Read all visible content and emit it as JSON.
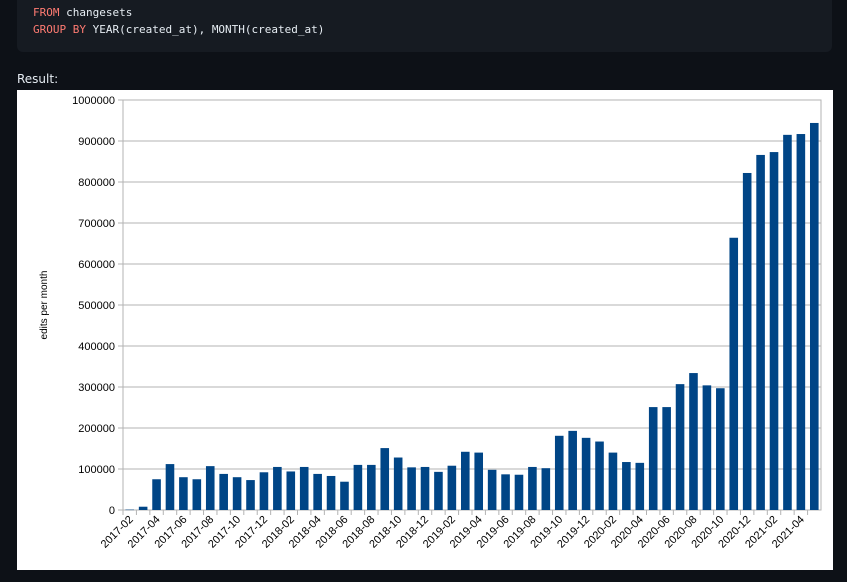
{
  "code": {
    "lines": [
      {
        "keyword": "FROM",
        "text": " changesets"
      },
      {
        "keyword": "GROUP BY",
        "text": " YEAR(created_at), MONTH(created_at)"
      }
    ]
  },
  "result_label": "Result:",
  "colors": {
    "bar": "#004586",
    "page_background": "#0d1117",
    "code_background": "#161b22",
    "keyword": "#ff7b72"
  },
  "chart_data": {
    "type": "bar",
    "ylabel": "edits per month",
    "xlabel": "",
    "ylim": [
      0,
      1000000
    ],
    "yticks": [
      0,
      100000,
      200000,
      300000,
      400000,
      500000,
      600000,
      700000,
      800000,
      900000,
      1000000
    ],
    "grid": true,
    "legend": "none",
    "categories": [
      "2017-02",
      "2017-03",
      "2017-04",
      "2017-05",
      "2017-06",
      "2017-07",
      "2017-08",
      "2017-09",
      "2017-10",
      "2017-11",
      "2017-12",
      "2018-01",
      "2018-02",
      "2018-03",
      "2018-04",
      "2018-05",
      "2018-06",
      "2018-07",
      "2018-08",
      "2018-09",
      "2018-10",
      "2018-11",
      "2018-12",
      "2019-01",
      "2019-02",
      "2019-03",
      "2019-04",
      "2019-05",
      "2019-06",
      "2019-07",
      "2019-08",
      "2019-09",
      "2019-10",
      "2019-11",
      "2019-12",
      "2020-01",
      "2020-02",
      "2020-03",
      "2020-04",
      "2020-05",
      "2020-06",
      "2020-07",
      "2020-08",
      "2020-09",
      "2020-10",
      "2020-11",
      "2020-12",
      "2021-01",
      "2021-02",
      "2021-03",
      "2021-04",
      "2021-05"
    ],
    "tick_labels": [
      "2017-02",
      "2017-04",
      "2017-06",
      "2017-08",
      "2017-10",
      "2017-12",
      "2018-02",
      "2018-04",
      "2018-06",
      "2018-08",
      "2018-10",
      "2018-12",
      "2019-02",
      "2019-04",
      "2019-06",
      "2019-08",
      "2019-10",
      "2019-12",
      "2020-02",
      "2020-04",
      "2020-06",
      "2020-08",
      "2020-10",
      "2020-12",
      "2021-02",
      "2021-04"
    ],
    "values": [
      1000,
      8000,
      75000,
      112000,
      80000,
      75000,
      107000,
      88000,
      80000,
      73000,
      92000,
      105000,
      94000,
      105000,
      88000,
      83000,
      69000,
      110000,
      110000,
      151000,
      128000,
      104000,
      105000,
      93000,
      108000,
      142000,
      140000,
      98000,
      87000,
      86000,
      105000,
      102000,
      181000,
      193000,
      176000,
      167000,
      140000,
      117000,
      115000,
      251000,
      251000,
      307000,
      334000,
      304000,
      297000,
      664000,
      822000,
      866000,
      873000,
      915000,
      917000,
      944000
    ]
  }
}
